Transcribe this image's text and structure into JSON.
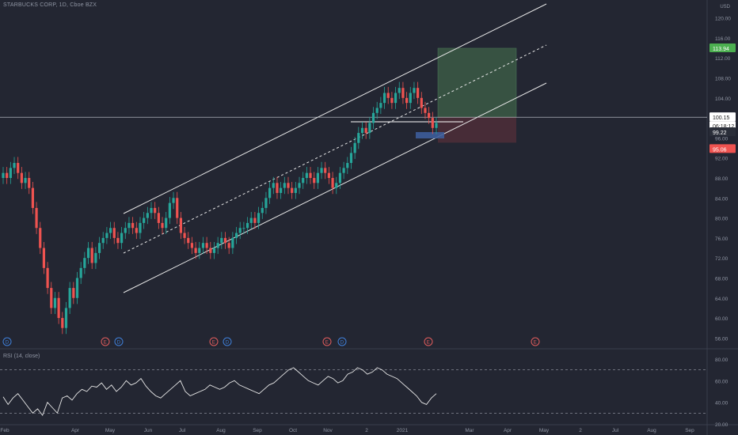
{
  "header": {
    "title": "STARBUCKS CORP, 1D, Cboe BZX",
    "currency": "USD",
    "rsi_title": "RSI (14, close)"
  },
  "colors": {
    "background": "#232632",
    "up_candle": "#26a69a",
    "down_candle": "#ef5350",
    "channel": "#e6e6e6",
    "target_zone": "#3b5a45",
    "stop_zone": "#4b2e37",
    "target_badge": "#4caf50",
    "stop_badge": "#ef5350"
  },
  "price_axis": {
    "ticks": [
      "120.00",
      "116.00",
      "112.00",
      "108.00",
      "104.00",
      "100.00",
      "96.00",
      "92.00",
      "88.00",
      "84.00",
      "80.00",
      "76.00",
      "72.00",
      "68.00",
      "64.00",
      "60.00",
      "56.00"
    ],
    "badges": {
      "target": "113.94",
      "last": "100.15",
      "countdown": "06:18:12",
      "close": "99.22",
      "stop": "95.06"
    }
  },
  "time_axis": {
    "labels": [
      "Feb",
      "Apr",
      "May",
      "Jun",
      "Jul",
      "Aug",
      "Sep",
      "Oct",
      "Nov",
      "2",
      "2021",
      "Mar",
      "Apr",
      "May",
      "2",
      "Jul",
      "Aug",
      "Sep"
    ]
  },
  "event_markers": [
    {
      "icon": "D"
    },
    {
      "icon": "E"
    },
    {
      "icon": "D"
    },
    {
      "icon": "E"
    },
    {
      "icon": "D"
    },
    {
      "icon": "E"
    },
    {
      "icon": "D"
    },
    {
      "icon": "E"
    },
    {
      "icon": "E"
    }
  ],
  "rsi_axis": {
    "ticks": [
      "80.00",
      "60.00",
      "40.00",
      "20.00"
    ]
  },
  "chart_data": [
    {
      "type": "candlestick",
      "title": "STARBUCKS CORP, 1D, Cboe BZX",
      "ylim": [
        54,
        122
      ],
      "x_start": "Feb 2020",
      "x_end": "Jan 2021",
      "close": [
        89,
        88,
        90,
        91,
        89,
        87,
        88,
        86,
        82,
        78,
        74,
        70,
        66,
        62,
        64,
        60,
        58,
        62,
        66,
        64,
        68,
        70,
        72,
        74,
        71,
        73,
        75,
        76,
        77,
        78,
        76,
        75,
        77,
        78,
        79,
        78,
        77,
        79,
        80,
        81,
        82,
        81,
        79,
        78,
        80,
        83,
        84,
        80,
        77,
        76,
        75,
        74,
        73,
        74,
        75,
        74,
        73,
        74,
        75,
        76,
        75,
        74,
        76,
        77,
        78,
        78,
        79,
        80,
        79,
        81,
        82,
        84,
        86,
        87,
        85,
        86,
        87,
        86,
        85,
        86,
        87,
        88,
        89,
        88,
        87,
        89,
        90,
        89,
        88,
        86,
        87,
        89,
        90,
        91,
        93,
        95,
        97,
        98,
        97,
        99,
        101,
        102,
        103,
        105,
        104,
        103,
        105,
        106,
        104,
        103,
        105,
        106,
        104,
        102,
        101,
        100,
        98,
        99
      ],
      "open": [
        88,
        89,
        88,
        90,
        91,
        89,
        87,
        88,
        86,
        82,
        78,
        74,
        70,
        66,
        62,
        64,
        60,
        58,
        62,
        66,
        64,
        68,
        70,
        72,
        74,
        71,
        73,
        75,
        76,
        77,
        78,
        76,
        75,
        77,
        78,
        79,
        78,
        77,
        79,
        80,
        81,
        82,
        81,
        79,
        78,
        80,
        83,
        84,
        80,
        77,
        76,
        75,
        74,
        73,
        74,
        75,
        74,
        73,
        74,
        75,
        76,
        75,
        74,
        76,
        77,
        78,
        78,
        79,
        80,
        79,
        81,
        82,
        84,
        86,
        87,
        85,
        86,
        87,
        86,
        85,
        86,
        87,
        88,
        89,
        88,
        87,
        89,
        90,
        89,
        88,
        86,
        87,
        89,
        90,
        91,
        93,
        95,
        97,
        98,
        97,
        99,
        101,
        102,
        103,
        105,
        104,
        103,
        105,
        106,
        104,
        103,
        105,
        106,
        104,
        102,
        101,
        100,
        98
      ]
    },
    {
      "type": "line",
      "title": "RSI (14, close)",
      "ylim": [
        20,
        80
      ],
      "values": [
        45,
        38,
        44,
        48,
        42,
        36,
        30,
        34,
        28,
        40,
        35,
        30,
        44,
        46,
        42,
        48,
        52,
        50,
        55,
        54,
        58,
        52,
        56,
        50,
        54,
        60,
        56,
        58,
        62,
        55,
        50,
        46,
        44,
        48,
        52,
        56,
        60,
        50,
        46,
        48,
        50,
        52,
        56,
        54,
        52,
        54,
        58,
        60,
        56,
        54,
        52,
        50,
        48,
        52,
        56,
        58,
        62,
        66,
        70,
        72,
        68,
        64,
        60,
        58,
        56,
        60,
        64,
        62,
        58,
        60,
        66,
        68,
        72,
        70,
        66,
        68,
        72,
        70,
        66,
        64,
        62,
        58,
        54,
        50,
        46,
        40,
        38,
        44,
        48
      ]
    }
  ]
}
